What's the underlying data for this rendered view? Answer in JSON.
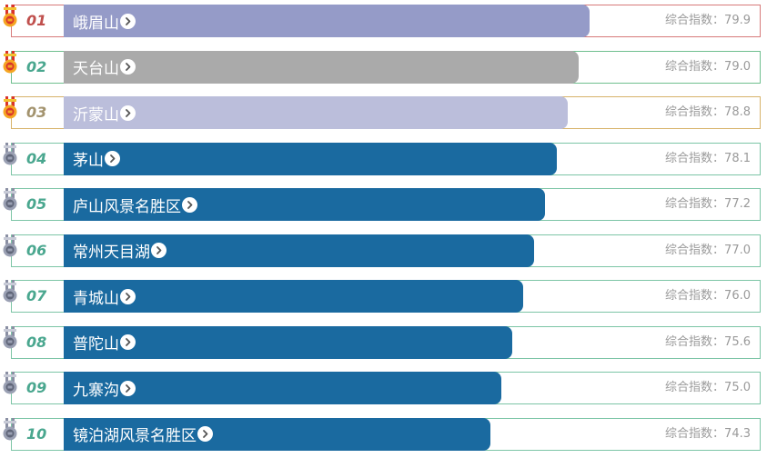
{
  "score_prefix": "综合指数：",
  "rows": [
    {
      "rank": "01",
      "name": "峨眉山",
      "score": "79.9",
      "bar_fill": 1.0,
      "bar_color": "#959bc8",
      "border_color": "#d77a7a",
      "rank_color": "#c0504d",
      "medal": "gold-medal-icon"
    },
    {
      "rank": "02",
      "name": "天台山",
      "score": "79.0",
      "bar_fill": 0.979,
      "bar_color": "#aaaaaa",
      "border_color": "#6fbf8f",
      "rank_color": "#4aa78f",
      "medal": "gold-medal-icon"
    },
    {
      "rank": "03",
      "name": "沂蒙山",
      "score": "78.8",
      "bar_fill": 0.958,
      "bar_color": "#bbbedb",
      "border_color": "#d7b36a",
      "rank_color": "#a3936e",
      "medal": "gold-medal-icon"
    },
    {
      "rank": "04",
      "name": "茅山",
      "score": "78.1",
      "bar_fill": 0.937,
      "bar_color": "#1a6aa0",
      "border_color": "#7cc5a6",
      "rank_color": "#4aa78f",
      "medal": "silver-medal-icon"
    },
    {
      "rank": "05",
      "name": "庐山风景名胜区",
      "score": "77.2",
      "bar_fill": 0.916,
      "bar_color": "#1a6aa0",
      "border_color": "#7cc5a6",
      "rank_color": "#4aa78f",
      "medal": "silver-medal-icon"
    },
    {
      "rank": "06",
      "name": "常州天目湖",
      "score": "77.0",
      "bar_fill": 0.895,
      "bar_color": "#1a6aa0",
      "border_color": "#7cc5a6",
      "rank_color": "#4aa78f",
      "medal": "silver-medal-icon"
    },
    {
      "rank": "07",
      "name": "青城山",
      "score": "76.0",
      "bar_fill": 0.874,
      "bar_color": "#1a6aa0",
      "border_color": "#7cc5a6",
      "rank_color": "#4aa78f",
      "medal": "silver-medal-icon"
    },
    {
      "rank": "08",
      "name": "普陀山",
      "score": "75.6",
      "bar_fill": 0.853,
      "bar_color": "#1a6aa0",
      "border_color": "#7cc5a6",
      "rank_color": "#4aa78f",
      "medal": "silver-medal-icon"
    },
    {
      "rank": "09",
      "name": "九寨沟",
      "score": "75.0",
      "bar_fill": 0.832,
      "bar_color": "#1a6aa0",
      "border_color": "#7cc5a6",
      "rank_color": "#4aa78f",
      "medal": "silver-medal-icon"
    },
    {
      "rank": "10",
      "name": "镜泊湖风景名胜区",
      "score": "74.3",
      "bar_fill": 0.811,
      "bar_color": "#1a6aa0",
      "border_color": "#7cc5a6",
      "rank_color": "#4aa78f",
      "medal": "silver-medal-icon"
    }
  ]
}
